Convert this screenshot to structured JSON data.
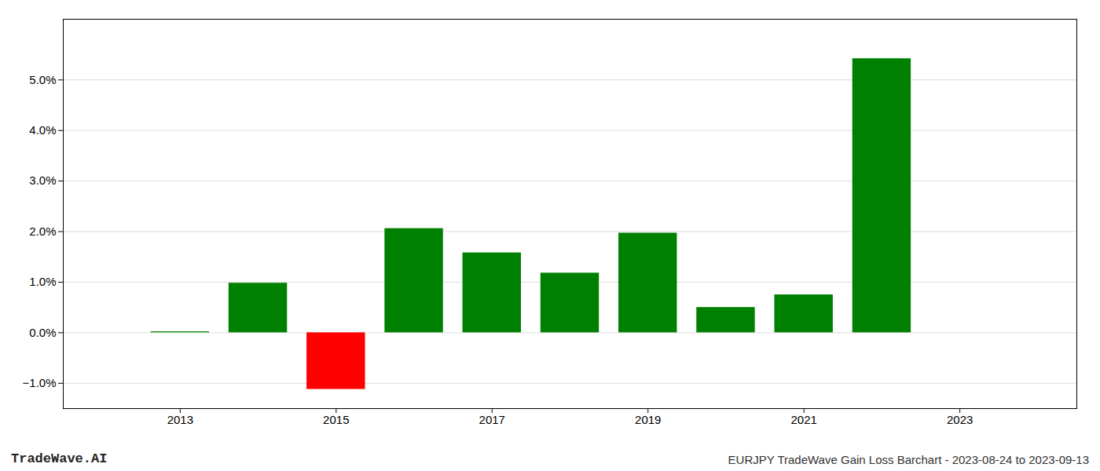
{
  "chart_data": {
    "type": "bar",
    "x": [
      2013,
      2014,
      2015,
      2016,
      2017,
      2018,
      2019,
      2020,
      2021,
      2022
    ],
    "values": [
      0.02,
      0.98,
      -1.12,
      2.06,
      1.58,
      1.18,
      1.97,
      0.5,
      0.75,
      5.42
    ],
    "colors": [
      "#008000",
      "#008000",
      "#ff0000",
      "#008000",
      "#008000",
      "#008000",
      "#008000",
      "#008000",
      "#008000",
      "#008000"
    ],
    "xlim": [
      2011.5,
      2024.5
    ],
    "xticks": [
      2013,
      2015,
      2017,
      2019,
      2021,
      2023
    ],
    "ylim": [
      -1.5,
      6.2
    ],
    "yticks": [
      {
        "value": -1.0,
        "label": "−1.0%"
      },
      {
        "value": 0.0,
        "label": "0.0%"
      },
      {
        "value": 1.0,
        "label": "1.0%"
      },
      {
        "value": 2.0,
        "label": "2.0%"
      },
      {
        "value": 3.0,
        "label": "3.0%"
      },
      {
        "value": 4.0,
        "label": "4.0%"
      },
      {
        "value": 5.0,
        "label": "5.0%"
      }
    ],
    "grid": true,
    "annotations": [
      "TradeWave.AI",
      "EURJPY TradeWave Gain Loss Barchart - 2023-08-24 to 2023-09-13"
    ]
  }
}
